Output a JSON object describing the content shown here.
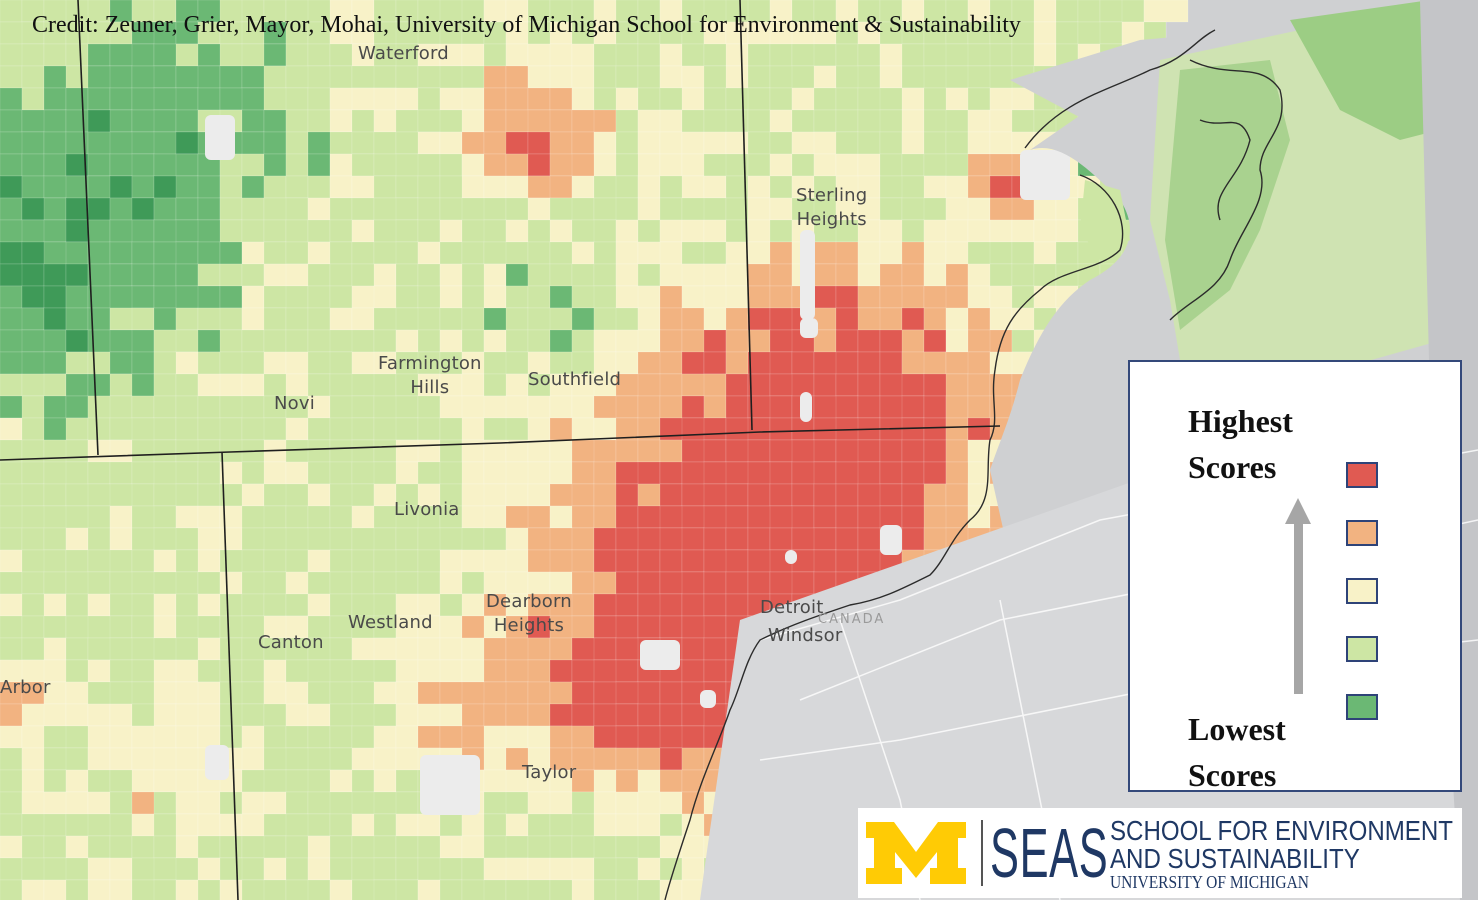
{
  "credit": "Credit: Zeuner, Grier, Mayor, Mohai, University of Michigan School for Environment & Sustainability",
  "cities": [
    {
      "id": "waterford",
      "lines": [
        "Waterford"
      ]
    },
    {
      "id": "sterling-heights",
      "lines": [
        "Sterling",
        "Heights"
      ]
    },
    {
      "id": "farmington-hills",
      "lines": [
        "Farmington",
        "Hills"
      ]
    },
    {
      "id": "southfield",
      "lines": [
        "Southfield"
      ]
    },
    {
      "id": "novi",
      "lines": [
        "Novi"
      ]
    },
    {
      "id": "livonia",
      "lines": [
        "Livonia"
      ]
    },
    {
      "id": "dearborn-heights",
      "lines": [
        "Dearborn",
        "Heights"
      ]
    },
    {
      "id": "westland",
      "lines": [
        "Westland"
      ]
    },
    {
      "id": "canton",
      "lines": [
        "Canton"
      ]
    },
    {
      "id": "detroit",
      "lines": [
        "Detroit"
      ]
    },
    {
      "id": "windsor",
      "lines": [
        "Windsor"
      ]
    },
    {
      "id": "taylor",
      "lines": [
        "Taylor"
      ]
    },
    {
      "id": "ann-arbor",
      "lines": [
        "Arbor"
      ]
    }
  ],
  "country_label": "CANADA",
  "legend": {
    "top_label": [
      "Highest",
      "Scores"
    ],
    "bottom_label": [
      "Lowest",
      "Scores"
    ],
    "arrow_icon": "up-arrow-icon",
    "swatches": [
      {
        "class": "highest",
        "color": "#e05a52"
      },
      {
        "class": "high",
        "color": "#f2b381"
      },
      {
        "class": "middle",
        "color": "#f8f2c8"
      },
      {
        "class": "low",
        "color": "#cde6a4"
      },
      {
        "class": "lowest",
        "color": "#6bb874"
      }
    ]
  },
  "logo": {
    "block_m": "M",
    "seas": "SEAS",
    "line1": "SCHOOL FOR ENVIRONMENT",
    "line2": "AND SUSTAINABILITY",
    "line3": "UNIVERSITY OF MICHIGAN",
    "maize": "#ffcb05",
    "blue": "#1f3864"
  },
  "map_colors": {
    "highest": "#e05a52",
    "high": "#f2b381",
    "middle": "#f8f2c8",
    "low": "#cde6a4",
    "lowest": "#6bb874",
    "darkest": "#3f9a58",
    "water": "#cfd0d2",
    "nodata": "#ececec"
  }
}
